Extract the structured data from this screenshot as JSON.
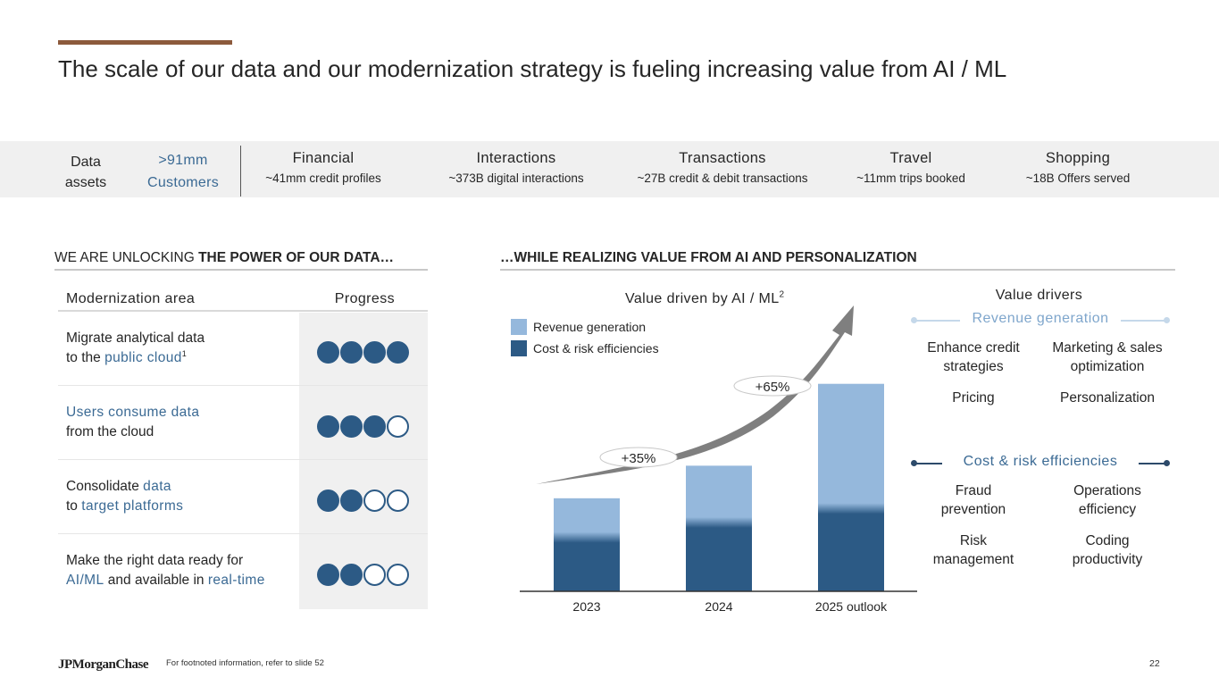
{
  "title": "The scale of our data and our modernization strategy is fueling increasing value from AI / ML",
  "colors": {
    "accent": "#8c5a3c",
    "highlight_blue": "#3b6a94",
    "dark_blue": "#2c5a85",
    "light_blue": "#95b8dc",
    "band_gray": "#f0f0f0"
  },
  "data_assets": {
    "label_line1": "Data",
    "label_line2": "assets",
    "customers_value": ">91mm",
    "customers_label": "Customers",
    "items": [
      {
        "name": "Financial",
        "desc": "~41mm credit profiles"
      },
      {
        "name": "Interactions",
        "desc": "~373B digital interactions"
      },
      {
        "name": "Transactions",
        "desc": "~27B credit & debit transactions"
      },
      {
        "name": "Travel",
        "desc": "~11mm trips booked"
      },
      {
        "name": "Shopping",
        "desc": "~18B Offers served"
      }
    ]
  },
  "left_section": {
    "heading_normal": "WE ARE UNLOCKING ",
    "heading_bold": "THE POWER OF OUR DATA…",
    "col_area": "Modernization area",
    "col_progress": "Progress",
    "rows": [
      {
        "segments": [
          {
            "t": "Migrate analytical data",
            "hl": false
          },
          {
            "br": true
          },
          {
            "t": "to the ",
            "hl": false
          },
          {
            "t": "public cloud",
            "hl": true
          },
          {
            "sup": "1"
          }
        ],
        "progress": 4,
        "max": 4
      },
      {
        "segments": [
          {
            "t": "Users consume data",
            "hl": true
          },
          {
            "br": true
          },
          {
            "t": "from the cloud",
            "hl": false
          }
        ],
        "progress": 3,
        "max": 4
      },
      {
        "segments": [
          {
            "t": "Consolidate ",
            "hl": false
          },
          {
            "t": "data",
            "hl": true
          },
          {
            "br": true
          },
          {
            "t": "to ",
            "hl": false
          },
          {
            "t": "target platforms",
            "hl": true
          }
        ],
        "progress": 2,
        "max": 4
      },
      {
        "segments": [
          {
            "t": "Make the right data ready for",
            "hl": false
          },
          {
            "br": true
          },
          {
            "t": "AI/ML",
            "hl": true
          },
          {
            "t": " and available in ",
            "hl": false
          },
          {
            "t": "real-time",
            "hl": true
          }
        ],
        "progress": 2,
        "max": 4
      }
    ]
  },
  "right_section": {
    "heading": "…WHILE REALIZING VALUE FROM AI AND PERSONALIZATION"
  },
  "chart_data": {
    "type": "bar",
    "stacked": true,
    "title": "Value driven by AI / ML",
    "title_sup": "2",
    "categories": [
      "2023",
      "2024",
      "2025 outlook"
    ],
    "series": [
      {
        "name": "Cost & risk efficiencies",
        "color": "#2c5a85",
        "values": [
          58,
          74,
          89
        ]
      },
      {
        "name": "Revenue generation",
        "color": "#95b8dc",
        "values": [
          42,
          61,
          134
        ]
      }
    ],
    "value_note": "relative values, 2023 total indexed to 100 (no axis shown)",
    "ylim": [
      0,
      240
    ],
    "growth_annotations": [
      "+35%",
      "+65%"
    ],
    "trend_arrow": true,
    "legend_position": "top-left",
    "grid": false,
    "xlabel": "",
    "ylabel": ""
  },
  "value_drivers": {
    "title": "Value drivers",
    "groups": [
      {
        "id": "revenue",
        "label": "Revenue generation",
        "color": "#7fa6cc",
        "line_color": "#c5d8ea",
        "items": [
          [
            "Enhance credit",
            "strategies"
          ],
          [
            "Marketing & sales",
            "optimization"
          ],
          [
            "Pricing"
          ],
          [
            "Personalization"
          ]
        ]
      },
      {
        "id": "cost",
        "label": "Cost & risk efficiencies",
        "color": "#3b6a94",
        "line_color": "#2c4a6a",
        "items": [
          [
            "Fraud",
            "prevention"
          ],
          [
            "Operations",
            "efficiency"
          ],
          [
            "Risk",
            "management"
          ],
          [
            "Coding",
            "productivity"
          ]
        ]
      }
    ]
  },
  "footer": {
    "logo": "JPMorganChase",
    "footnote": "For footnoted information, refer to slide 52",
    "page_number": "22"
  }
}
